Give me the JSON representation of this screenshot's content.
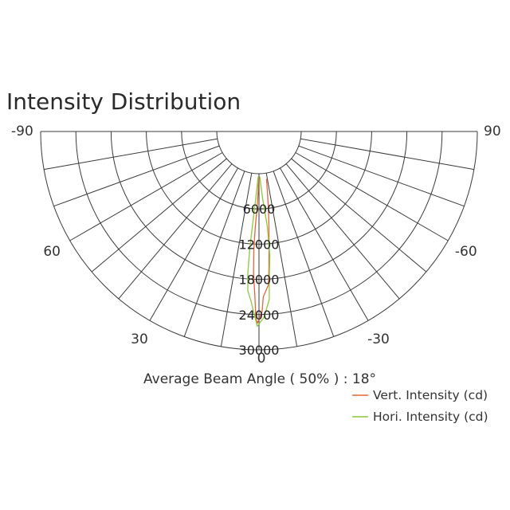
{
  "chart_data": {
    "type": "polar",
    "title": "Intensity Distribution",
    "angle_range": [
      -90,
      90
    ],
    "angle_labels": [
      "-90",
      "-60",
      "-30",
      "0",
      "30",
      "60",
      "90"
    ],
    "angle_label_values": [
      -90,
      -60,
      -30,
      0,
      30,
      60,
      90
    ],
    "radial_labels": [
      "6000",
      "12000",
      "18000",
      "24000",
      "30000"
    ],
    "radial_label_values": [
      6000,
      12000,
      18000,
      24000,
      30000
    ],
    "radial_range": [
      0,
      30000
    ],
    "grid": true,
    "beam_angle_text": "Average Beam Angle ( 50% ) : 18°",
    "legend_placement": "bottom-right",
    "series": [
      {
        "name": "Vert. Intensity (cd)",
        "color": "#e8643c",
        "points": [
          {
            "angle": -9,
            "value": 1000
          },
          {
            "angle": -8,
            "value": 3000
          },
          {
            "angle": -7,
            "value": 6000
          },
          {
            "angle": -6,
            "value": 9000
          },
          {
            "angle": -5,
            "value": 12500
          },
          {
            "angle": -4.2,
            "value": 16000
          },
          {
            "angle": -3.5,
            "value": 19000
          },
          {
            "angle": -1.5,
            "value": 21000
          },
          {
            "angle": -1,
            "value": 23500
          },
          {
            "angle": 0.5,
            "value": 25500
          },
          {
            "angle": 1,
            "value": 24500
          },
          {
            "angle": 1.2,
            "value": 22500
          },
          {
            "angle": 1.5,
            "value": 20500
          },
          {
            "angle": 2.2,
            "value": 17000
          },
          {
            "angle": 2.5,
            "value": 13000
          },
          {
            "angle": 2.2,
            "value": 9000
          },
          {
            "angle": 1.5,
            "value": 6000
          },
          {
            "angle": 0.8,
            "value": 3000
          },
          {
            "angle": 0.5,
            "value": 500
          }
        ]
      },
      {
        "name": "Hori. Intensity (cd)",
        "color": "#8cc83c",
        "points": [
          {
            "angle": -1,
            "value": 500
          },
          {
            "angle": -3,
            "value": 4000
          },
          {
            "angle": -5,
            "value": 9000
          },
          {
            "angle": -5,
            "value": 14000
          },
          {
            "angle": -4,
            "value": 18000
          },
          {
            "angle": -3.5,
            "value": 21500
          },
          {
            "angle": -1.5,
            "value": 24500
          },
          {
            "angle": 0.5,
            "value": 26000
          },
          {
            "angle": 2,
            "value": 23000
          },
          {
            "angle": 2.5,
            "value": 22000
          },
          {
            "angle": 4,
            "value": 20000
          },
          {
            "angle": 4.5,
            "value": 17000
          },
          {
            "angle": 4.5,
            "value": 13000
          },
          {
            "angle": 4,
            "value": 9000
          },
          {
            "angle": 3,
            "value": 5000
          },
          {
            "angle": 1,
            "value": 500
          }
        ]
      }
    ]
  }
}
